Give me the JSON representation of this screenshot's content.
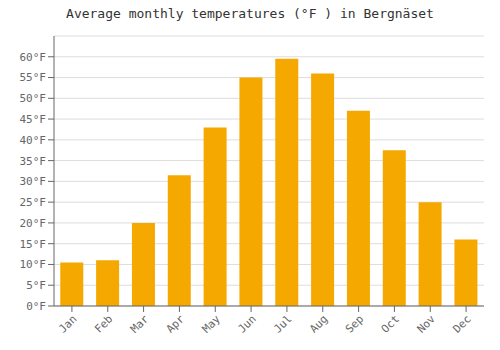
{
  "chart_data": {
    "type": "bar",
    "title": "Average monthly temperatures (°F ) in Bergnäset",
    "categories": [
      "Jan",
      "Feb",
      "Mar",
      "Apr",
      "May",
      "Jun",
      "Jul",
      "Aug",
      "Sep",
      "Oct",
      "Nov",
      "Dec"
    ],
    "values": [
      10.5,
      11.0,
      20.0,
      31.5,
      43.0,
      55.0,
      59.5,
      56.0,
      47.0,
      37.5,
      25.0,
      16.0
    ],
    "color": "#F5A800",
    "ylim": [
      0,
      65
    ],
    "yticks": [
      {
        "value": 0,
        "label": "0°F"
      },
      {
        "value": 5,
        "label": "5°F"
      },
      {
        "value": 10,
        "label": "10°F"
      },
      {
        "value": 15,
        "label": "15°F"
      },
      {
        "value": 20,
        "label": "20°F"
      },
      {
        "value": 25,
        "label": "25°F"
      },
      {
        "value": 30,
        "label": "30°F"
      },
      {
        "value": 35,
        "label": "35°F"
      },
      {
        "value": 40,
        "label": "40°F"
      },
      {
        "value": 45,
        "label": "45°F"
      },
      {
        "value": 50,
        "label": "50°F"
      },
      {
        "value": 55,
        "label": "55°F"
      },
      {
        "value": 60,
        "label": "60°F"
      }
    ],
    "grid": true
  }
}
